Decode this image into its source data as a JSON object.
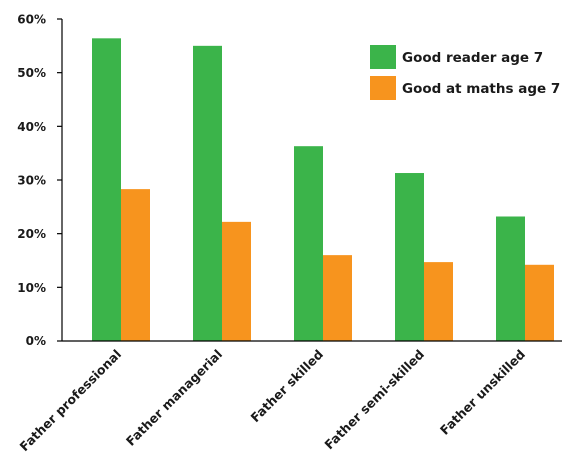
{
  "chart_data": {
    "type": "bar",
    "categories": [
      "Father professional",
      "Father managerial",
      "Father skilled",
      "Father semi-skilled",
      "Father unskilled"
    ],
    "series": [
      {
        "name": "Good reader age 7",
        "color": "#3bb44a",
        "values": [
          56.4,
          55.0,
          36.3,
          31.3,
          23.2
        ]
      },
      {
        "name": "Good at maths age 7",
        "color": "#f7941e",
        "values": [
          28.3,
          22.2,
          16.0,
          14.7,
          14.2
        ]
      }
    ],
    "yticks": [
      "0%",
      "10%",
      "20%",
      "30%",
      "40%",
      "50%",
      "60%"
    ],
    "ylim": [
      0,
      60
    ],
    "grid": false,
    "legend": "top-right",
    "title": "",
    "xlabel": "",
    "ylabel": ""
  }
}
